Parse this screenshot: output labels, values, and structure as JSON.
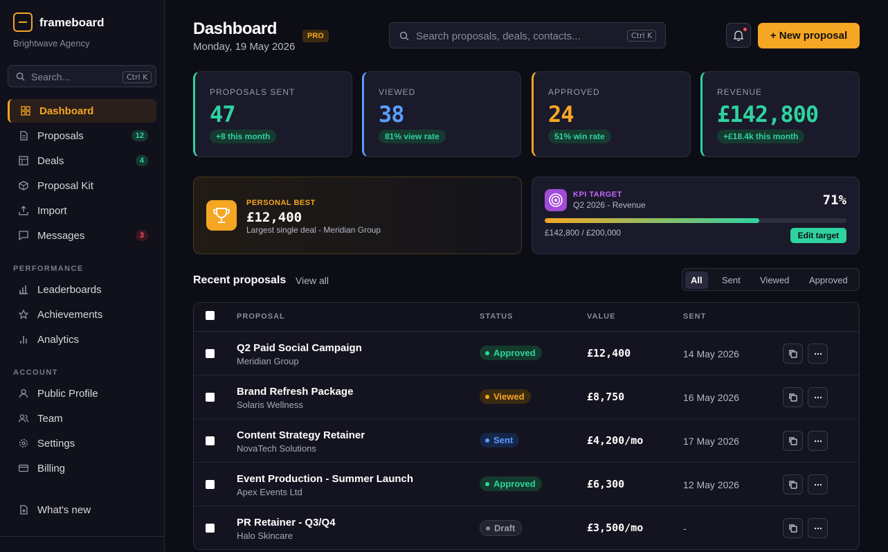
{
  "sidebar": {
    "brand": "frameboard",
    "agency": "Brightwave Agency",
    "search_placeholder": "Search...",
    "search_shortcut": "Ctrl K",
    "items": [
      {
        "label": "Dashboard",
        "icon": "grid-icon"
      },
      {
        "label": "Proposals",
        "icon": "document-icon",
        "badge": "12"
      },
      {
        "label": "Deals",
        "icon": "layout-icon",
        "badge": "4"
      },
      {
        "label": "Proposal Kit",
        "icon": "box-icon"
      },
      {
        "label": "Import",
        "icon": "upload-icon"
      },
      {
        "label": "Messages",
        "icon": "chat-icon",
        "badge": "3"
      }
    ],
    "performance_title": "PERFORMANCE",
    "performance": [
      {
        "label": "Leaderboards",
        "icon": "bar-chart-icon"
      },
      {
        "label": "Achievements",
        "icon": "star-icon"
      },
      {
        "label": "Analytics",
        "icon": "analytics-icon"
      }
    ],
    "account_title": "ACCOUNT",
    "account": [
      {
        "label": "Public Profile",
        "icon": "user-icon"
      },
      {
        "label": "Team",
        "icon": "team-icon"
      },
      {
        "label": "Settings",
        "icon": "gear-icon"
      },
      {
        "label": "Billing",
        "icon": "card-icon"
      }
    ],
    "whats_new": "What's new"
  },
  "header": {
    "title": "Dashboard",
    "badge": "PRO",
    "date": "Monday, 19 May 2026",
    "search_placeholder": "Search proposals, deals, contacts...",
    "search_shortcut": "Ctrl K",
    "new_button": "+ New proposal"
  },
  "stats": [
    {
      "label": "PROPOSALS SENT",
      "value": "47",
      "chip": "+8 this month",
      "color": "#2ed3a0"
    },
    {
      "label": "VIEWED",
      "value": "38",
      "chip": "81% view rate",
      "color": "#5b9cff"
    },
    {
      "label": "APPROVED",
      "value": "24",
      "chip": "51% win rate",
      "color": "#f5a623"
    },
    {
      "label": "REVENUE",
      "value": "£142,800",
      "chip": "+£18.4k this month",
      "color": "#2ed3a0"
    }
  ],
  "personal_best": {
    "label": "PERSONAL BEST",
    "value": "£12,400",
    "subtitle": "Largest single deal - Meridian Group"
  },
  "kpi": {
    "label": "KPI TARGET",
    "subtitle": "Q2 2026 - Revenue",
    "percent": "71%",
    "progress": 0.71,
    "amount": "£142,800 / £200,000",
    "edit_button": "Edit target"
  },
  "recent": {
    "title": "Recent proposals",
    "view_all": "View all",
    "filters": [
      "All",
      "Sent",
      "Viewed",
      "Approved"
    ],
    "columns": [
      "PROPOSAL",
      "STATUS",
      "VALUE",
      "SENT"
    ],
    "rows": [
      {
        "name": "Q2 Paid Social Campaign",
        "client": "Meridian Group",
        "status": "Approved",
        "value": "£12,400",
        "sent": "14 May 2026"
      },
      {
        "name": "Brand Refresh Package",
        "client": "Solaris Wellness",
        "status": "Viewed",
        "value": "£8,750",
        "sent": "16 May 2026"
      },
      {
        "name": "Content Strategy Retainer",
        "client": "NovaTech Solutions",
        "status": "Sent",
        "value": "£4,200/mo",
        "sent": "17 May 2026"
      },
      {
        "name": "Event Production - Summer Launch",
        "client": "Apex Events Ltd",
        "status": "Approved",
        "value": "£6,300",
        "sent": "12 May 2026"
      },
      {
        "name": "PR Retainer - Q3/Q4",
        "client": "Halo Skincare",
        "status": "Draft",
        "value": "£3,500/mo",
        "sent": "-"
      }
    ]
  },
  "colors": {
    "accent": "#f5a623",
    "green": "#2ed3a0",
    "blue": "#5b9cff",
    "purple": "#c566ff",
    "red": "#ff4d5e"
  }
}
